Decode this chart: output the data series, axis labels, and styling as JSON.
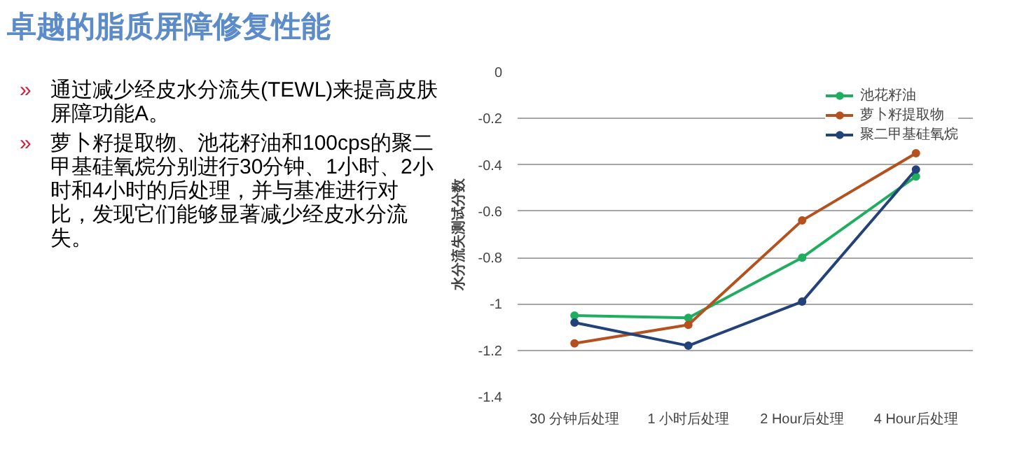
{
  "chart_data": {
    "type": "line",
    "title": "卓越的脂质屏障修复性能",
    "annotations": [
      "»",
      "通过减少经皮水分流失(TEWL)来提高皮肤屏障功能A。",
      "»",
      "萝卜籽提取物、池花籽油和100cps的聚二甲基硅氧烷分别进行30分钟、1小时、2小时和4小时的后处理，并与基准进行对比，发现它们能够显著减少经皮水分流失。"
    ],
    "ylabel": "水分流失测试分数",
    "categories": [
      "30 分钟后处理",
      "1 小时后处理",
      "2 Hour后处理",
      "4 Hour后处理"
    ],
    "series": [
      {
        "name": "池花籽油",
        "color": "#1fae5f",
        "values": [
          -1.05,
          -1.06,
          -0.8,
          -0.45
        ]
      },
      {
        "name": "萝卜籽提取物",
        "color": "#b4511e",
        "values": [
          -1.17,
          -1.09,
          -0.64,
          -0.35
        ]
      },
      {
        "name": "聚二甲基硅氧烷",
        "color": "#23427a",
        "values": [
          -1.08,
          -1.18,
          -0.99,
          -0.42
        ]
      }
    ],
    "ylim": [
      -1.4,
      0
    ],
    "yticks": [
      0,
      -0.2,
      -0.4,
      -0.6,
      -0.8,
      -1,
      -1.2,
      -1.4
    ],
    "grid": "y",
    "legend": "top right",
    "marker": "circle",
    "line_style": "solid"
  }
}
